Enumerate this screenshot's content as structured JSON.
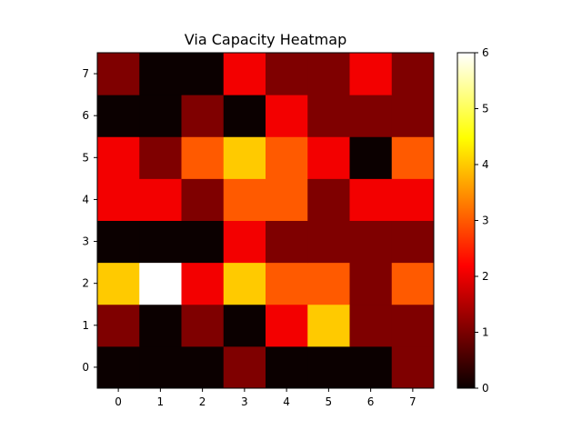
{
  "chart_data": {
    "type": "heatmap",
    "title": "Via Capacity Heatmap",
    "xlabel": "",
    "ylabel": "",
    "x_ticks": [
      "0",
      "1",
      "2",
      "3",
      "4",
      "5",
      "6",
      "7"
    ],
    "y_ticks": [
      "0",
      "1",
      "2",
      "3",
      "4",
      "5",
      "6",
      "7"
    ],
    "colormap": "hot",
    "vmin": 0,
    "vmax": 6,
    "colorbar_ticks": [
      "0",
      "1",
      "2",
      "3",
      "4",
      "5",
      "6"
    ],
    "grid": false,
    "values": [
      [
        0,
        0,
        0,
        1,
        0,
        0,
        0,
        1
      ],
      [
        1,
        0,
        1,
        0,
        2,
        4,
        1,
        1
      ],
      [
        4,
        6,
        2,
        4,
        3,
        3,
        1,
        3
      ],
      [
        0,
        0,
        0,
        2,
        1,
        1,
        1,
        1
      ],
      [
        2,
        2,
        1,
        3,
        3,
        1,
        2,
        2
      ],
      [
        2,
        1,
        3,
        4,
        3,
        2,
        0,
        3
      ],
      [
        0,
        0,
        1,
        0,
        2,
        1,
        1,
        1
      ],
      [
        1,
        0,
        0,
        2,
        1,
        1,
        2,
        1
      ]
    ]
  }
}
